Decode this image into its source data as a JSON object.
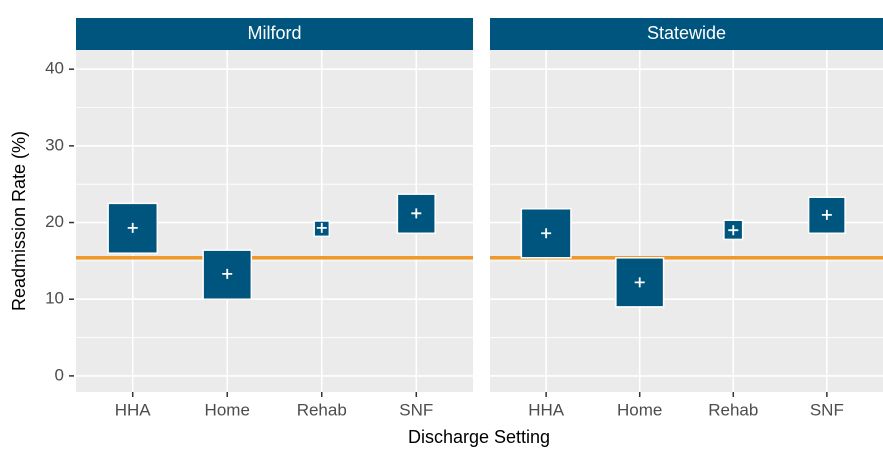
{
  "chart_data": {
    "type": "crossbar",
    "x_label": "Discharge Setting",
    "y_label": "Readmission Rate (%)",
    "categories": [
      "HHA",
      "Home",
      "Rehab",
      "SNF"
    ],
    "ylim": [
      -2.1,
      42.5
    ],
    "yticks": [
      0,
      10,
      20,
      30,
      40
    ],
    "minor_yticks": [
      5,
      15,
      25,
      35
    ],
    "reference_line": 15.4,
    "reference_color": "#f0982a",
    "color": "#00557f",
    "strip_color": "#00557f",
    "grid": true,
    "panels": [
      {
        "title": "Milford",
        "low": [
          16.0,
          10.0,
          18.2,
          18.6
        ],
        "high": [
          22.5,
          16.4,
          20.2,
          23.7
        ],
        "estimate": [
          19.3,
          13.3,
          19.3,
          21.2
        ],
        "box_widths": [
          0.52,
          0.51,
          0.16,
          0.4
        ]
      },
      {
        "title": "Statewide",
        "low": [
          15.4,
          9.0,
          17.8,
          18.6
        ],
        "high": [
          21.8,
          15.4,
          20.3,
          23.3
        ],
        "estimate": [
          18.6,
          12.2,
          19.0,
          21.0
        ],
        "box_widths": [
          0.53,
          0.51,
          0.2,
          0.39
        ]
      }
    ]
  }
}
